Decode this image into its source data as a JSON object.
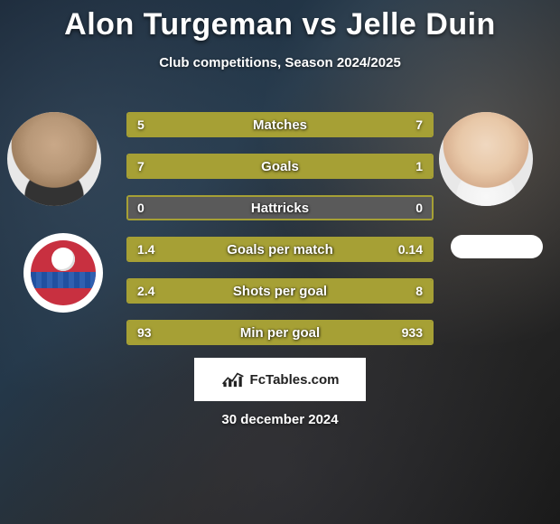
{
  "title": "Alon Turgeman vs Jelle Duin",
  "subtitle": "Club competitions, Season 2024/2025",
  "date": "30 december 2024",
  "badge_text": "FcTables.com",
  "colors": {
    "bar_fill": "#a6a035",
    "bar_track": "#5a5a5a",
    "bar_border": "#a6a035"
  },
  "stats": [
    {
      "label": "Matches",
      "left_val": "5",
      "right_val": "7",
      "left_pct": 41.7,
      "right_pct": 58.3
    },
    {
      "label": "Goals",
      "left_val": "7",
      "right_val": "1",
      "left_pct": 87.5,
      "right_pct": 12.5
    },
    {
      "label": "Hattricks",
      "left_val": "0",
      "right_val": "0",
      "left_pct": 0,
      "right_pct": 0
    },
    {
      "label": "Goals per match",
      "left_val": "1.4",
      "right_val": "0.14",
      "left_pct": 90.9,
      "right_pct": 9.1
    },
    {
      "label": "Shots per goal",
      "left_val": "2.4",
      "right_val": "8",
      "left_pct": 23.1,
      "right_pct": 76.9
    },
    {
      "label": "Min per goal",
      "left_val": "93",
      "right_val": "933",
      "left_pct": 9.1,
      "right_pct": 90.9
    }
  ]
}
